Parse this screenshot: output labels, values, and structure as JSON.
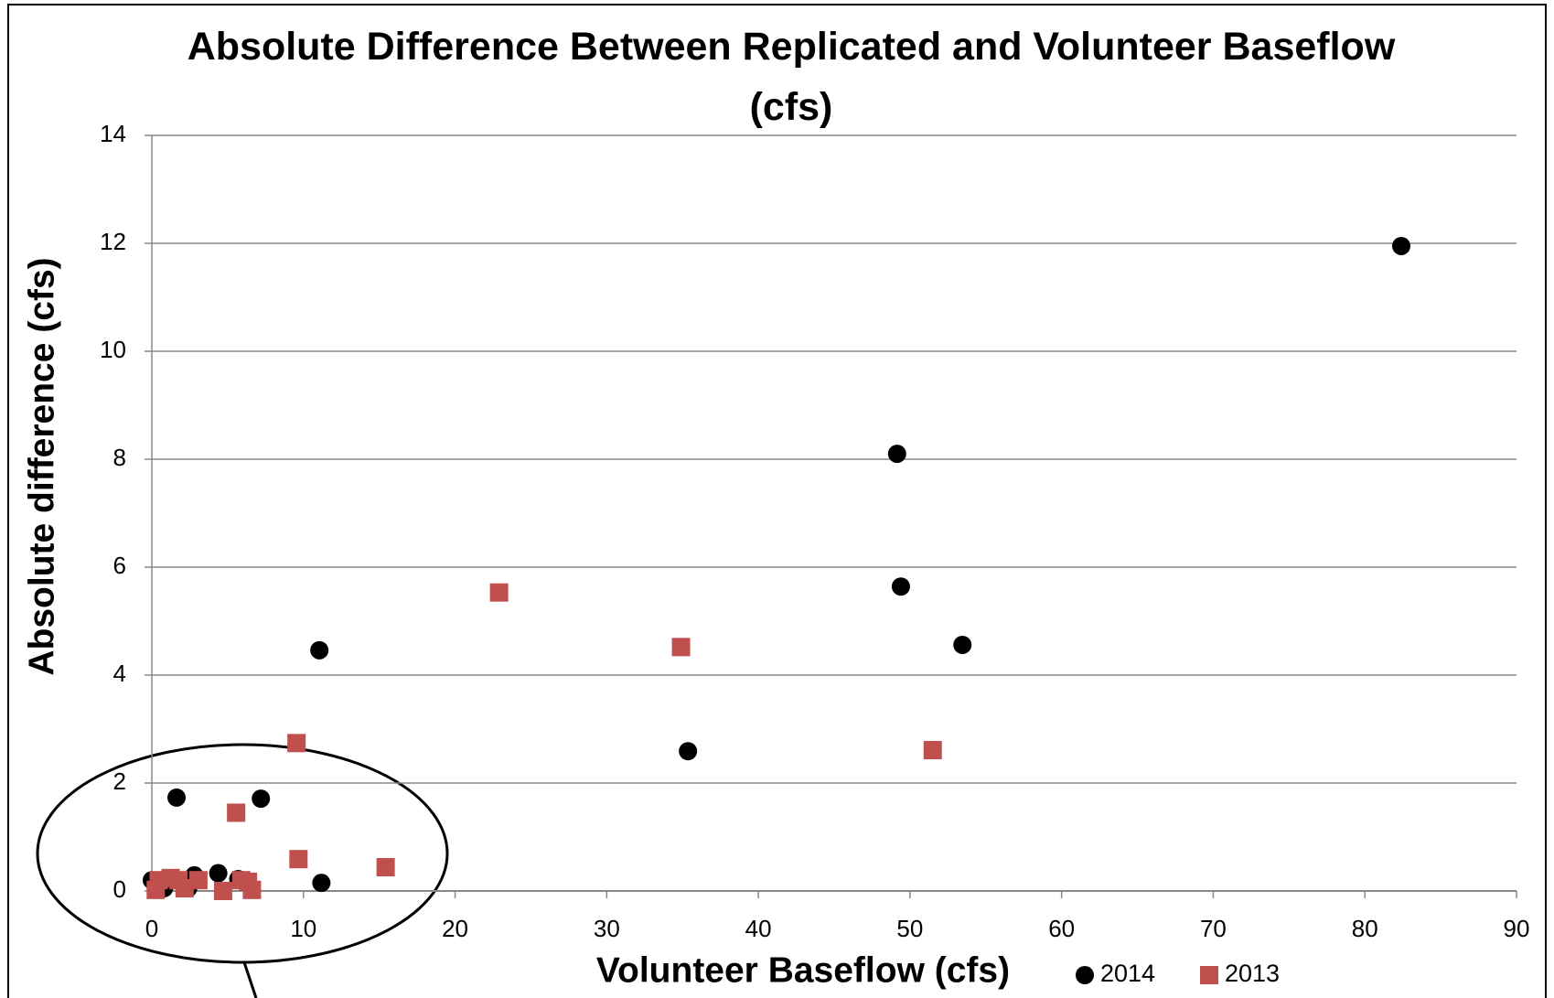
{
  "chart_data": {
    "type": "scatter",
    "title": "Absolute Difference Between Replicated and Volunteer Baseflow (cfs)",
    "xlabel": "Volunteer Baseflow (cfs)",
    "ylabel": "Absolute difference (cfs)",
    "xlim": [
      0,
      90
    ],
    "xticks": [
      0,
      10,
      20,
      30,
      40,
      50,
      60,
      70,
      80,
      90
    ],
    "ylim": [
      0,
      14
    ],
    "yticks": [
      0,
      2,
      4,
      6,
      8,
      10,
      12,
      14
    ],
    "grid": true,
    "legend": "bottom-right",
    "series": [
      {
        "name": "2014",
        "color": "#000000",
        "marker": "circle",
        "x": [
          82.4,
          49.15,
          49.4,
          53.46,
          11.05,
          35.36,
          1.63,
          7.19,
          11.18,
          4.38,
          2.8,
          5.7,
          0,
          0.8,
          2.4,
          1.1
        ],
        "values": [
          11.95,
          8.1,
          5.64,
          4.56,
          4.46,
          2.59,
          1.73,
          1.71,
          0.15,
          0.33,
          0.29,
          0.22,
          0.2,
          0.05,
          0.05,
          0.17
        ]
      },
      {
        "name": "2013",
        "color": "#c0504d",
        "marker": "square",
        "x": [
          22.9,
          34.9,
          51.5,
          9.54,
          5.56,
          9.67,
          15.42,
          0.26,
          0.45,
          1.24,
          1.76,
          2.16,
          3.07,
          4.7,
          5.9,
          6.34,
          6.6
        ],
        "values": [
          5.53,
          4.52,
          2.61,
          2.74,
          1.45,
          0.59,
          0.44,
          0.02,
          0.2,
          0.24,
          0.2,
          0.05,
          0.2,
          0,
          0.2,
          0.17,
          0.02
        ]
      }
    ]
  }
}
